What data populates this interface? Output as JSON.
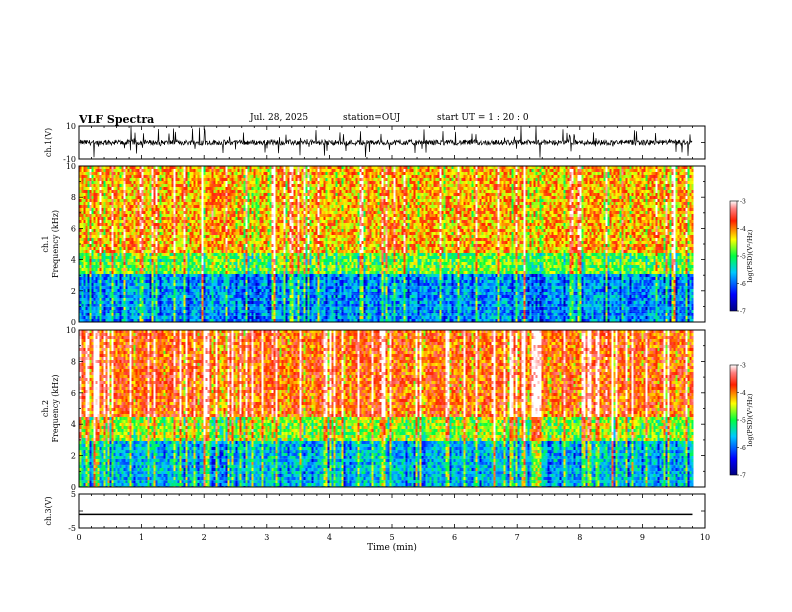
{
  "header": {
    "title": "VLF Spectra",
    "date": "Jul. 28, 2025",
    "station": "station=OUJ",
    "start": "start UT =  1 : 20 : 0"
  },
  "chart_data": [
    {
      "type": "line",
      "ylabel": "ch.1(V)",
      "ylim": [
        -10,
        10
      ],
      "yticks": [
        "10",
        "-10"
      ],
      "xlim": [
        0,
        10
      ],
      "description_free": true,
      "series_style": "noisy waveform around 0 V with frequent spikes",
      "baseline": 0
    },
    {
      "type": "heatmap",
      "ylabel": "ch.1\nFrequency (kHz)",
      "ylabel_lines": [
        "ch.1",
        "Frequency (kHz)"
      ],
      "ylim": [
        0,
        10
      ],
      "yticks": [
        "0",
        "2",
        "4",
        "6",
        "8",
        "10"
      ],
      "xlim": [
        0,
        10
      ],
      "data_end_min": 9.8,
      "colorbar": {
        "label": "log(PSD)(V²/Hz)",
        "range": [
          -7,
          -3
        ],
        "ticks": [
          "-3",
          "-4",
          "-5",
          "-6",
          "-7"
        ]
      }
    },
    {
      "type": "heatmap",
      "ylabel": "ch.2\nFrequency (kHz)",
      "ylabel_lines": [
        "ch.2",
        "Frequency (kHz)"
      ],
      "ylim": [
        0,
        10
      ],
      "yticks": [
        "0",
        "2",
        "4",
        "6",
        "8",
        "10"
      ],
      "xlim": [
        0,
        10
      ],
      "data_end_min": 9.8,
      "colorbar": {
        "label": "log(PSD)(V²/Hz)",
        "range": [
          -7,
          -3
        ],
        "ticks": [
          "-3",
          "-4",
          "-5",
          "-6",
          "-7"
        ]
      }
    },
    {
      "type": "line",
      "ylabel": "ch.3(V)",
      "ylim": [
        -5,
        5
      ],
      "yticks": [
        "5",
        "-5"
      ],
      "xlim": [
        0,
        10
      ],
      "constant_value": -1,
      "data_end_min": 9.8,
      "xlabel": "Time (min)",
      "xticks": [
        "0",
        "1",
        "2",
        "3",
        "4",
        "5",
        "6",
        "7",
        "8",
        "9",
        "10"
      ]
    }
  ]
}
